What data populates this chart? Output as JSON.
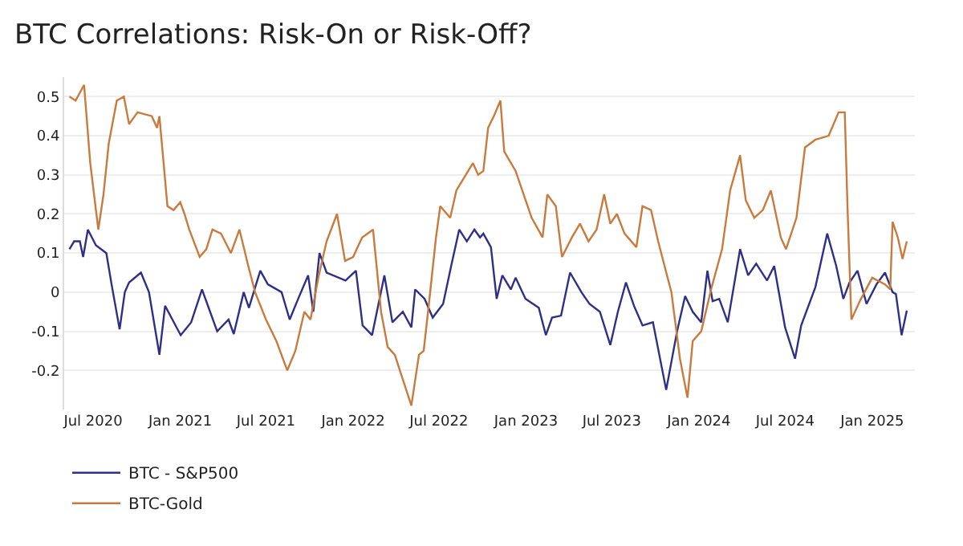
{
  "chart_data": {
    "type": "line",
    "title": "BTC Correlations: Risk-On or Risk-Off?",
    "xlim": [
      "2020-05-01",
      "2025-04-01"
    ],
    "xticks": [
      {
        "value": "2020-07-01",
        "label": "Jul 2020"
      },
      {
        "value": "2021-01-01",
        "label": "Jan 2021"
      },
      {
        "value": "2021-07-01",
        "label": "Jul 2021"
      },
      {
        "value": "2022-01-01",
        "label": "Jan 2022"
      },
      {
        "value": "2022-07-01",
        "label": "Jul 2022"
      },
      {
        "value": "2023-01-01",
        "label": "Jan 2023"
      },
      {
        "value": "2023-07-01",
        "label": "Jul 2023"
      },
      {
        "value": "2024-01-01",
        "label": "Jan 2024"
      },
      {
        "value": "2024-07-01",
        "label": "Jul 2024"
      },
      {
        "value": "2025-01-01",
        "label": "Jan 2025"
      }
    ],
    "ylim": [
      -0.3,
      0.55
    ],
    "yticks": [
      -0.2,
      -0.1,
      0,
      0.1,
      0.2,
      0.3,
      0.4,
      0.5
    ],
    "grid": "y",
    "legend": "bottom",
    "marker": "none",
    "line_style": "solid",
    "series": [
      {
        "name": "BTC - S&P500",
        "color": "#2e2f86",
        "x": [
          "2020-05-12",
          "2020-05-22",
          "2020-06-03",
          "2020-06-10",
          "2020-06-20",
          "2020-07-07",
          "2020-07-29",
          "2020-08-09",
          "2020-08-26",
          "2020-09-06",
          "2020-09-15",
          "2020-10-10",
          "2020-10-27",
          "2020-11-18",
          "2020-11-30",
          "2021-01-02",
          "2021-01-24",
          "2021-02-16",
          "2021-03-05",
          "2021-03-20",
          "2021-04-13",
          "2021-04-24",
          "2021-05-15",
          "2021-05-26",
          "2021-06-19",
          "2021-07-05",
          "2021-08-03",
          "2021-08-20",
          "2021-09-07",
          "2021-09-28",
          "2021-10-09",
          "2021-10-22",
          "2021-11-06",
          "2021-12-16",
          "2022-01-07",
          "2022-01-21",
          "2022-02-10",
          "2022-03-08",
          "2022-03-25",
          "2022-04-16",
          "2022-05-04",
          "2022-05-12",
          "2022-06-01",
          "2022-06-18",
          "2022-07-10",
          "2022-07-27",
          "2022-08-13",
          "2022-08-29",
          "2022-09-14",
          "2022-09-26",
          "2022-10-03",
          "2022-10-19",
          "2022-10-31",
          "2022-11-12",
          "2022-11-30",
          "2022-12-10",
          "2022-12-31",
          "2023-01-28",
          "2023-02-12",
          "2023-02-25",
          "2023-03-16",
          "2023-04-04",
          "2023-04-28",
          "2023-05-15",
          "2023-06-06",
          "2023-06-28",
          "2023-07-14",
          "2023-07-31",
          "2023-08-17",
          "2023-09-04",
          "2023-09-26",
          "2023-10-24",
          "2023-11-16",
          "2023-12-03",
          "2023-12-19",
          "2024-01-06",
          "2024-01-19",
          "2024-01-30",
          "2024-02-13",
          "2024-03-02",
          "2024-03-28",
          "2024-04-14",
          "2024-05-01",
          "2024-05-24",
          "2024-06-08",
          "2024-07-01",
          "2024-07-22",
          "2024-08-04",
          "2024-09-03",
          "2024-09-28",
          "2024-10-17",
          "2024-11-01",
          "2024-11-14",
          "2024-12-01",
          "2024-12-20",
          "2025-01-10",
          "2025-01-28",
          "2025-02-13",
          "2025-02-20",
          "2025-03-04",
          "2025-03-15"
        ],
        "values": [
          0.11,
          0.13,
          0.13,
          0.09,
          0.16,
          0.12,
          0.1,
          0.02,
          -0.095,
          0.0,
          0.025,
          0.05,
          0.0,
          -0.16,
          -0.035,
          -0.11,
          -0.077,
          0.007,
          -0.05,
          -0.1,
          -0.07,
          -0.107,
          0.0,
          -0.04,
          0.055,
          0.02,
          0.0,
          -0.07,
          -0.017,
          0.043,
          -0.05,
          0.1,
          0.05,
          0.03,
          0.055,
          -0.085,
          -0.11,
          0.043,
          -0.077,
          -0.05,
          -0.09,
          0.007,
          -0.017,
          -0.065,
          -0.03,
          0.067,
          0.16,
          0.13,
          0.16,
          0.14,
          0.15,
          0.115,
          -0.017,
          0.043,
          0.007,
          0.037,
          -0.017,
          -0.04,
          -0.11,
          -0.065,
          -0.06,
          0.05,
          0.0,
          -0.03,
          -0.05,
          -0.135,
          -0.05,
          0.025,
          -0.035,
          -0.085,
          -0.077,
          -0.25,
          -0.1,
          -0.01,
          -0.05,
          -0.077,
          0.055,
          -0.023,
          -0.017,
          -0.077,
          0.11,
          0.043,
          0.073,
          0.03,
          0.067,
          -0.09,
          -0.17,
          -0.085,
          0.013,
          0.15,
          0.067,
          -0.017,
          0.025,
          0.055,
          -0.03,
          0.02,
          0.05,
          0.0,
          -0.005,
          -0.11,
          -0.047
        ]
      },
      {
        "name": "BTC-Gold",
        "color": "#c97a3d",
        "x": [
          "2020-05-12",
          "2020-05-25",
          "2020-06-12",
          "2020-06-25",
          "2020-07-12",
          "2020-07-23",
          "2020-08-03",
          "2020-08-20",
          "2020-09-04",
          "2020-09-15",
          "2020-10-03",
          "2020-11-02",
          "2020-11-13",
          "2020-11-18",
          "2020-12-05",
          "2020-12-18",
          "2021-01-01",
          "2021-01-10",
          "2021-01-20",
          "2021-02-11",
          "2021-02-25",
          "2021-03-10",
          "2021-03-28",
          "2021-04-18",
          "2021-05-06",
          "2021-05-24",
          "2021-06-08",
          "2021-07-01",
          "2021-07-23",
          "2021-08-15",
          "2021-09-01",
          "2021-09-20",
          "2021-10-03",
          "2021-10-20",
          "2021-11-06",
          "2021-11-28",
          "2021-12-15",
          "2022-01-01",
          "2022-01-20",
          "2022-02-12",
          "2022-03-01",
          "2022-03-15",
          "2022-03-30",
          "2022-05-04",
          "2022-05-20",
          "2022-05-30",
          "2022-06-10",
          "2022-06-25",
          "2022-07-04",
          "2022-07-25",
          "2022-08-07",
          "2022-09-11",
          "2022-09-22",
          "2022-10-03",
          "2022-10-13",
          "2022-10-25",
          "2022-11-08",
          "2022-11-16",
          "2022-12-10",
          "2023-01-13",
          "2023-02-05",
          "2023-02-15",
          "2023-03-05",
          "2023-03-18",
          "2023-04-08",
          "2023-04-25",
          "2023-05-13",
          "2023-05-30",
          "2023-06-15",
          "2023-06-28",
          "2023-07-12",
          "2023-07-28",
          "2023-08-22",
          "2023-09-04",
          "2023-09-22",
          "2023-10-07",
          "2023-11-04",
          "2023-11-22",
          "2023-12-08",
          "2023-12-19",
          "2024-01-06",
          "2024-01-28",
          "2024-02-19",
          "2024-03-07",
          "2024-03-28",
          "2024-04-09",
          "2024-04-27",
          "2024-05-15",
          "2024-06-01",
          "2024-06-22",
          "2024-07-03",
          "2024-07-25",
          "2024-08-12",
          "2024-09-03",
          "2024-10-01",
          "2024-10-22",
          "2024-11-04",
          "2024-11-10",
          "2024-11-18",
          "2024-12-07",
          "2025-01-01",
          "2025-01-28",
          "2025-02-08",
          "2025-02-13",
          "2025-02-24",
          "2025-03-06",
          "2025-03-15"
        ],
        "values": [
          0.5,
          0.49,
          0.53,
          0.33,
          0.16,
          0.25,
          0.38,
          0.49,
          0.5,
          0.43,
          0.46,
          0.45,
          0.42,
          0.45,
          0.22,
          0.21,
          0.23,
          0.2,
          0.16,
          0.09,
          0.11,
          0.16,
          0.15,
          0.1,
          0.16,
          0.07,
          0.0,
          -0.07,
          -0.125,
          -0.2,
          -0.15,
          -0.05,
          -0.07,
          0.04,
          0.13,
          0.2,
          0.08,
          0.09,
          0.14,
          0.16,
          -0.05,
          -0.14,
          -0.16,
          -0.29,
          -0.16,
          -0.15,
          -0.03,
          0.14,
          0.22,
          0.19,
          0.26,
          0.33,
          0.3,
          0.31,
          0.42,
          0.45,
          0.49,
          0.36,
          0.31,
          0.19,
          0.14,
          0.25,
          0.22,
          0.09,
          0.14,
          0.175,
          0.13,
          0.16,
          0.25,
          0.175,
          0.2,
          0.15,
          0.115,
          0.22,
          0.21,
          0.13,
          0.0,
          -0.17,
          -0.27,
          -0.125,
          -0.1,
          0.013,
          0.11,
          0.26,
          0.35,
          0.235,
          0.19,
          0.21,
          0.26,
          0.14,
          0.11,
          0.19,
          0.37,
          0.39,
          0.4,
          0.46,
          0.46,
          0.21,
          -0.07,
          -0.02,
          0.037,
          0.02,
          0.007,
          0.18,
          0.14,
          0.085,
          0.13
        ]
      }
    ]
  }
}
